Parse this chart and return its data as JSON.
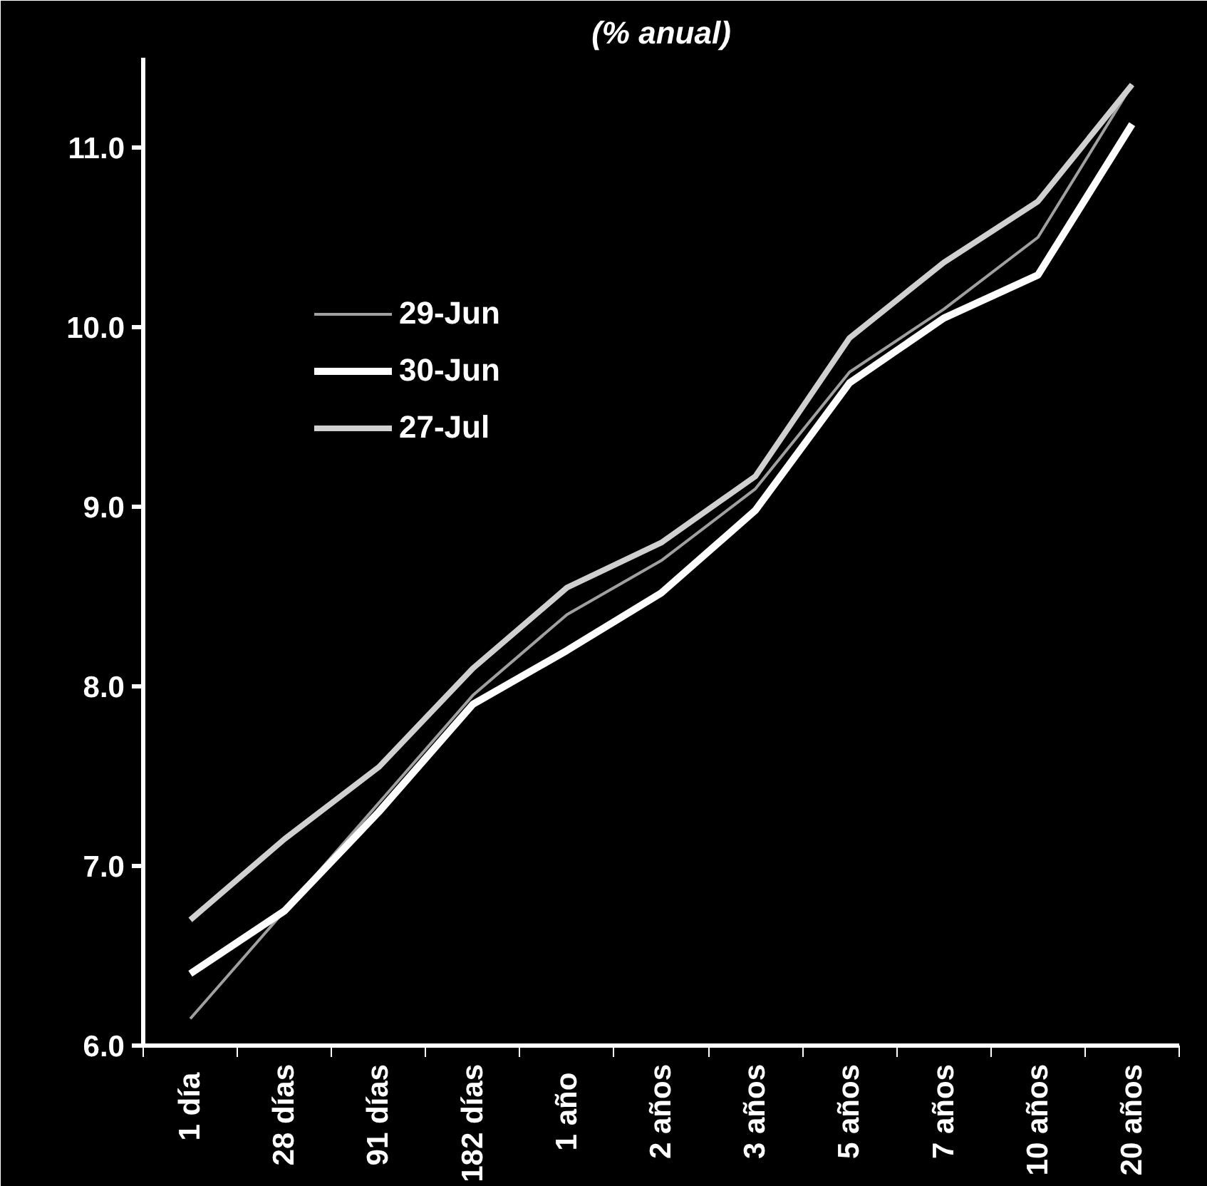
{
  "chart_data": {
    "type": "line",
    "title": "(% anual)",
    "categories": [
      "1  día",
      "28 días",
      "91 días",
      "182 días",
      "1  año",
      "2 años",
      "3 años",
      "5 años",
      "7 años",
      "10 años",
      "20 años"
    ],
    "series": [
      {
        "name": "29-Jun",
        "color": "#a0a0a0",
        "values": [
          6.15,
          6.75,
          7.35,
          7.95,
          8.4,
          8.7,
          9.1,
          9.75,
          10.1,
          10.5,
          11.35
        ]
      },
      {
        "name": "30-Jun",
        "color": "#ffffff",
        "values": [
          6.4,
          6.75,
          7.3,
          7.9,
          8.2,
          8.52,
          8.98,
          9.69,
          10.05,
          10.29,
          11.13
        ]
      },
      {
        "name": "27-Jul",
        "color": "#d0d0d0",
        "values": [
          6.7,
          7.15,
          7.55,
          8.1,
          8.55,
          8.8,
          9.17,
          9.94,
          10.36,
          10.7,
          11.35
        ]
      }
    ],
    "ylim": [
      6.0,
      11.5
    ],
    "yticks": [
      {
        "value": 6,
        "label": "6.0"
      },
      {
        "value": 7,
        "label": "7.0"
      },
      {
        "value": 8,
        "label": "8.0"
      },
      {
        "value": 9,
        "label": "9.0"
      },
      {
        "value": 10,
        "label": "10.0"
      },
      {
        "value": 11,
        "label": "11.0"
      }
    ],
    "grid": false,
    "legend": "top left",
    "marker": "none",
    "line_style": "solid"
  }
}
